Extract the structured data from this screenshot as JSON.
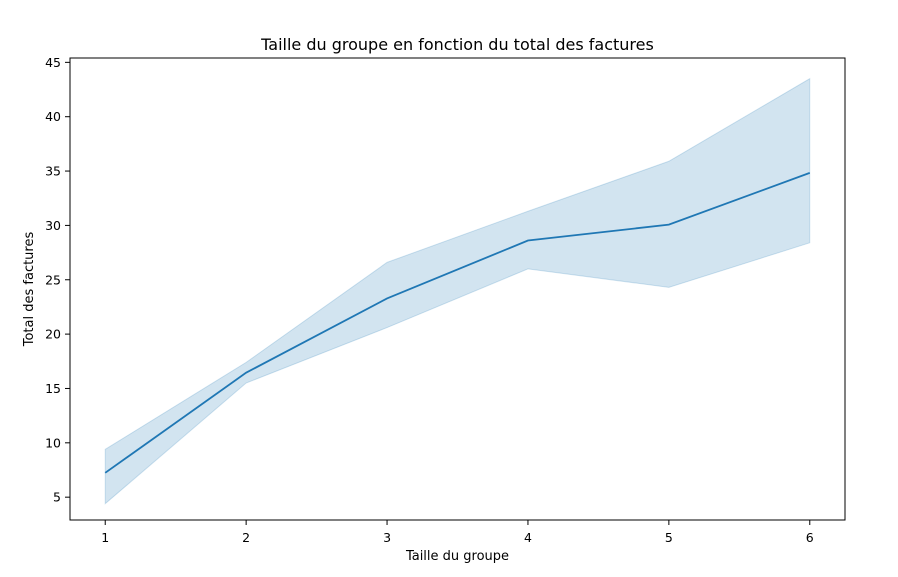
{
  "chart_data": {
    "type": "line",
    "title": "Taille du groupe en fonction du total des factures",
    "xlabel": "Taille du groupe",
    "ylabel": "Total des factures",
    "x": [
      1,
      2,
      3,
      4,
      5,
      6
    ],
    "series": [
      {
        "values": [
          7.24,
          16.45,
          23.28,
          28.61,
          30.07,
          34.83
        ],
        "ci_lower": [
          4.4,
          15.5,
          20.6,
          26.0,
          24.3,
          28.4
        ],
        "ci_upper": [
          9.4,
          17.4,
          26.6,
          31.3,
          35.9,
          43.5
        ],
        "color": "#1f77b4",
        "band_color": "#1f77b4"
      }
    ],
    "xticks": [
      "1",
      "2",
      "3",
      "4",
      "5",
      "6"
    ],
    "yticks": [
      "5",
      "10",
      "15",
      "20",
      "25",
      "30",
      "35",
      "40",
      "45"
    ],
    "xlim": [
      0.75,
      6.25
    ],
    "ylim": [
      2.9,
      45.4
    ],
    "grid": false,
    "legend": "none"
  }
}
